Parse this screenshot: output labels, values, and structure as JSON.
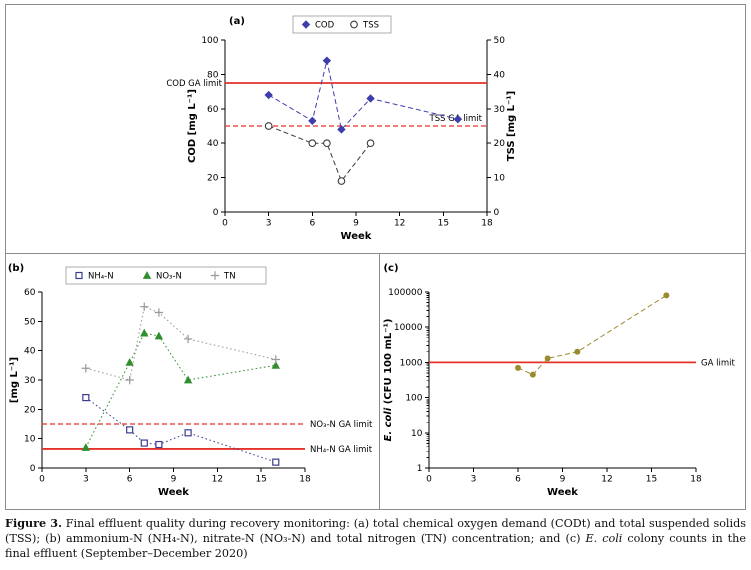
{
  "figure": {
    "caption_segments": [
      {
        "text": "Figure 3.",
        "bold": true
      },
      {
        "text": " Final effluent quality during recovery monitoring: (a) total chemical oxygen demand (CODt) and total suspended solids (TSS); (b) ammonium-N (NH₄-N), nitrate-N (NO₃-N) and total nitrogen (TN) concentration; and (c) "
      },
      {
        "text": "E. coli",
        "italic": true
      },
      {
        "text": " colony counts in the final effluent (September–December 2020)"
      }
    ]
  },
  "colors": {
    "limit_red": "#e5332a",
    "cod_blue": "#3d3dae",
    "tss_gray": "#3a3a3a",
    "nh4_purple": "#3c3c8f",
    "no3_green": "#2f8f2f",
    "tn_gray": "#999999",
    "ecoli_olive": "#9a8b2d",
    "frame_gray": "#8c8c8c"
  },
  "chart_data": [
    {
      "id": "a",
      "type": "line",
      "panel_label": "(a)",
      "xlabel": "Week",
      "xlim": [
        0,
        18
      ],
      "x_ticks": [
        0,
        3,
        6,
        9,
        12,
        15,
        18
      ],
      "axes": {
        "left": {
          "label": "COD [mg L⁻¹]",
          "lim": [
            0,
            100
          ],
          "ticks": [
            0,
            20,
            40,
            60,
            80,
            100
          ]
        },
        "right": {
          "label": "TSS [mg L⁻¹]",
          "lim": [
            0,
            50
          ],
          "ticks": [
            0,
            10,
            20,
            30,
            40,
            50
          ]
        }
      },
      "series": [
        {
          "name": "COD",
          "axis": "left",
          "marker": "diamond",
          "color": "#3d3dae",
          "line": "dashed",
          "x": [
            3,
            6,
            7,
            8,
            10,
            16
          ],
          "values": [
            68,
            53,
            88,
            48,
            66,
            54
          ]
        },
        {
          "name": "TSS",
          "axis": "right",
          "marker": "circle-open",
          "color": "#3a3a3a",
          "line": "dashed",
          "x": [
            3,
            6,
            7,
            8,
            10
          ],
          "values": [
            25,
            20,
            20,
            9,
            20
          ]
        }
      ],
      "limit_lines": [
        {
          "label": "COD GA limit",
          "axis": "left",
          "value": 75,
          "style": "solid",
          "color": "#e5332a",
          "label_pos": "left-outside"
        },
        {
          "label": "TSS GA limit",
          "axis": "right",
          "value": 25,
          "style": "dashed",
          "color": "#e5332a",
          "label_pos": "right-inside"
        }
      ],
      "legend": [
        "COD",
        "TSS"
      ]
    },
    {
      "id": "b",
      "type": "line",
      "panel_label": "(b)",
      "xlabel": "Week",
      "xlim": [
        0,
        18
      ],
      "x_ticks": [
        0,
        3,
        6,
        9,
        12,
        15,
        18
      ],
      "axes": {
        "left": {
          "label": "[mg L⁻¹]",
          "lim": [
            0,
            60
          ],
          "ticks": [
            0,
            10,
            20,
            30,
            40,
            50,
            60
          ]
        }
      },
      "series": [
        {
          "name": "NH₄-N",
          "axis": "left",
          "marker": "square-open",
          "color": "#3c3c8f",
          "line": "dotted",
          "x": [
            3,
            6,
            7,
            8,
            10,
            16
          ],
          "values": [
            24,
            13,
            8.5,
            8,
            12,
            2
          ]
        },
        {
          "name": "NO₃-N",
          "axis": "left",
          "marker": "triangle",
          "color": "#2f8f2f",
          "line": "dotted",
          "x": [
            3,
            6,
            7,
            8,
            10,
            16
          ],
          "values": [
            7,
            36,
            46,
            45,
            30,
            35
          ]
        },
        {
          "name": "TN",
          "axis": "left",
          "marker": "plus",
          "color": "#999999",
          "line": "dotted",
          "x": [
            3,
            6,
            7,
            8,
            10,
            16
          ],
          "values": [
            34,
            30,
            55,
            53,
            44,
            37
          ]
        }
      ],
      "limit_lines": [
        {
          "label": "NO₃-N GA limit",
          "axis": "left",
          "value": 15,
          "style": "dashed",
          "color": "#e5332a",
          "label_pos": "right-outside"
        },
        {
          "label": "NH₄-N GA limit",
          "axis": "left",
          "value": 6.5,
          "style": "solid",
          "color": "#e5332a",
          "label_pos": "right-outside"
        }
      ],
      "legend": [
        "NH₄-N",
        "NO₃-N",
        "TN"
      ]
    },
    {
      "id": "c",
      "type": "line",
      "panel_label": "(c)",
      "xlabel": "Week",
      "xlim": [
        0,
        18
      ],
      "x_ticks": [
        0,
        3,
        6,
        9,
        12,
        15,
        18
      ],
      "axes": {
        "left": {
          "label": "E. coli (CFU 100 mL⁻¹)",
          "label_segments": [
            {
              "text": "E. coli",
              "italic": true
            },
            {
              "text": " (CFU 100 mL⁻¹)"
            }
          ],
          "lim": [
            1,
            100000
          ],
          "scale": "log",
          "ticks": [
            1,
            10,
            100,
            1000,
            10000,
            100000
          ]
        }
      },
      "series": [
        {
          "name": "E. coli",
          "axis": "left",
          "marker": "circle",
          "color": "#9a8b2d",
          "line": "dashed",
          "x": [
            6,
            7,
            8,
            10,
            16
          ],
          "values": [
            700,
            450,
            1300,
            2000,
            80000
          ]
        }
      ],
      "limit_lines": [
        {
          "label": "GA limit",
          "axis": "left",
          "value": 1000,
          "style": "solid",
          "color": "#e5332a",
          "label_pos": "right-outside"
        }
      ],
      "legend": []
    }
  ]
}
